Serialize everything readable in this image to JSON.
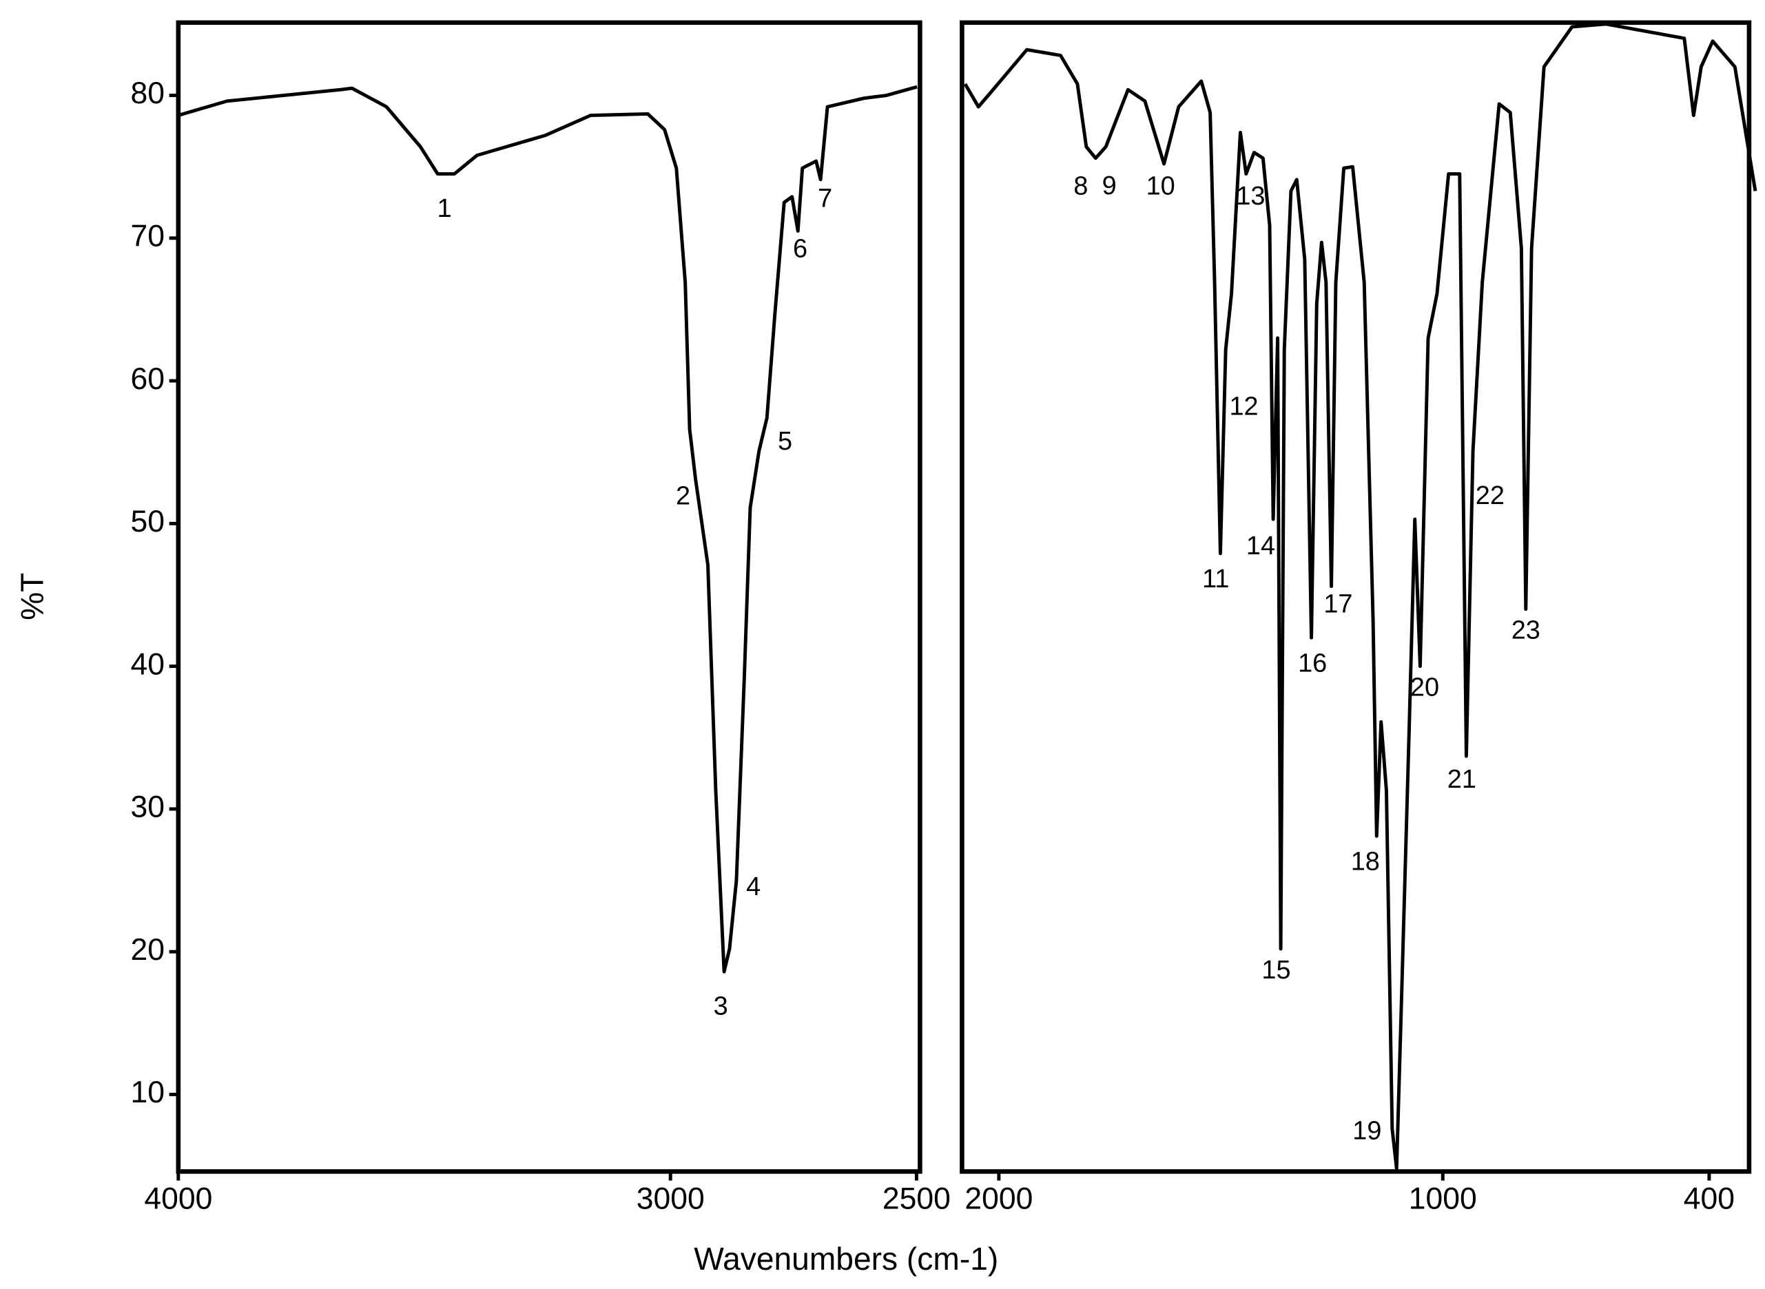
{
  "xlabel": "Wavenumbers (cm-1)",
  "ylabel": "%T",
  "chart_data": [
    {
      "type": "line",
      "xlim": [
        4000,
        2493
      ],
      "ylim": [
        4.6,
        85.1
      ],
      "xticks": [
        4000,
        3000,
        2500
      ],
      "yticks": [
        10,
        20,
        30,
        40,
        50,
        60,
        70,
        80
      ],
      "color": "#000000",
      "x": [
        4000,
        3901,
        3670,
        3647,
        3577,
        3508,
        3473,
        3439,
        3393,
        3254,
        3162,
        3046,
        3012,
        2988,
        2970,
        2961,
        2949,
        2924,
        2908,
        2891,
        2880,
        2866,
        2850,
        2838,
        2820,
        2804,
        2788,
        2769,
        2753,
        2741,
        2732,
        2704,
        2695,
        2681,
        2607,
        2561,
        2499
      ],
      "values": [
        78.6,
        79.6,
        80.4,
        80.5,
        79.2,
        76.4,
        74.5,
        74.5,
        75.8,
        77.2,
        78.6,
        78.7,
        77.6,
        74.9,
        66.9,
        56.6,
        53.1,
        47.1,
        31.3,
        18.6,
        20.2,
        25.0,
        39.2,
        51.1,
        55.1,
        57.4,
        64.6,
        72.5,
        72.9,
        70.5,
        74.9,
        75.4,
        74.1,
        79.2,
        79.8,
        80.0,
        80.6
      ],
      "peaks": [
        {
          "label": "1",
          "x": 3450,
          "y": 74.5
        },
        {
          "label": "2",
          "x": 2949,
          "y": 53.1
        },
        {
          "label": "3",
          "x": 2891,
          "y": 18.6
        },
        {
          "label": "4",
          "x": 2866,
          "y": 25.0
        },
        {
          "label": "5",
          "x": 2804,
          "y": 57.4
        },
        {
          "label": "6",
          "x": 2741,
          "y": 70.5
        },
        {
          "label": "7",
          "x": 2695,
          "y": 74.1
        }
      ]
    },
    {
      "type": "line",
      "xlim": [
        2083,
        310
      ],
      "ylim": [
        4.6,
        85.1
      ],
      "xticks": [
        2000,
        1000,
        400
      ],
      "color": "#000000",
      "x": [
        2076,
        2046,
        2013,
        1937,
        1861,
        1823,
        1803,
        1782,
        1759,
        1709,
        1671,
        1628,
        1595,
        1544,
        1524,
        1514,
        1501,
        1489,
        1476,
        1456,
        1443,
        1425,
        1405,
        1390,
        1382,
        1372,
        1365,
        1357,
        1342,
        1329,
        1311,
        1296,
        1284,
        1273,
        1263,
        1251,
        1241,
        1223,
        1203,
        1177,
        1157,
        1149,
        1139,
        1127,
        1114,
        1104,
        1094,
        1076,
        1063,
        1051,
        1033,
        1013,
        987,
        962,
        947,
        932,
        911,
        873,
        848,
        823,
        813,
        800,
        772,
        709,
        633,
        456,
        435,
        418,
        392,
        342,
        296
      ],
      "values": [
        80.8,
        79.2,
        80.4,
        83.2,
        82.8,
        80.8,
        76.4,
        75.6,
        76.4,
        80.4,
        79.6,
        75.2,
        79.2,
        81.0,
        78.8,
        66.9,
        47.9,
        62.2,
        66.1,
        77.4,
        74.5,
        76.0,
        75.6,
        70.9,
        50.3,
        63.0,
        20.2,
        62.2,
        73.3,
        74.1,
        68.5,
        42.0,
        65.4,
        69.7,
        66.9,
        45.6,
        66.9,
        74.9,
        75.0,
        66.9,
        43.2,
        28.1,
        36.1,
        31.3,
        7.6,
        4.8,
        15.5,
        35.3,
        50.3,
        40.0,
        63.0,
        66.1,
        74.5,
        74.5,
        33.7,
        55.1,
        66.9,
        79.4,
        78.8,
        69.3,
        44.0,
        69.3,
        82.0,
        84.8,
        85.0,
        84.0,
        78.6,
        82.0,
        83.8,
        82.0,
        73.3
      ],
      "peaks": [
        {
          "label": "8",
          "x": 1782,
          "y": 75.6
        },
        {
          "label": "9",
          "x": 1759,
          "y": 76.4
        },
        {
          "label": "10",
          "x": 1628,
          "y": 75.2
        },
        {
          "label": "11",
          "x": 1501,
          "y": 47.9
        },
        {
          "label": "12",
          "x": 1489,
          "y": 62.2
        },
        {
          "label": "13",
          "x": 1443,
          "y": 74.5
        },
        {
          "label": "14",
          "x": 1382,
          "y": 50.3
        },
        {
          "label": "15",
          "x": 1365,
          "y": 20.2
        },
        {
          "label": "16",
          "x": 1296,
          "y": 42.0
        },
        {
          "label": "17",
          "x": 1251,
          "y": 45.6
        },
        {
          "label": "18",
          "x": 1149,
          "y": 28.1
        },
        {
          "label": "19",
          "x": 1104,
          "y": 4.8
        },
        {
          "label": "20",
          "x": 1051,
          "y": 40.0
        },
        {
          "label": "21",
          "x": 947,
          "y": 33.7
        },
        {
          "label": "22",
          "x": 932,
          "y": 55.1
        },
        {
          "label": "23",
          "x": 813,
          "y": 44.0
        }
      ]
    }
  ]
}
